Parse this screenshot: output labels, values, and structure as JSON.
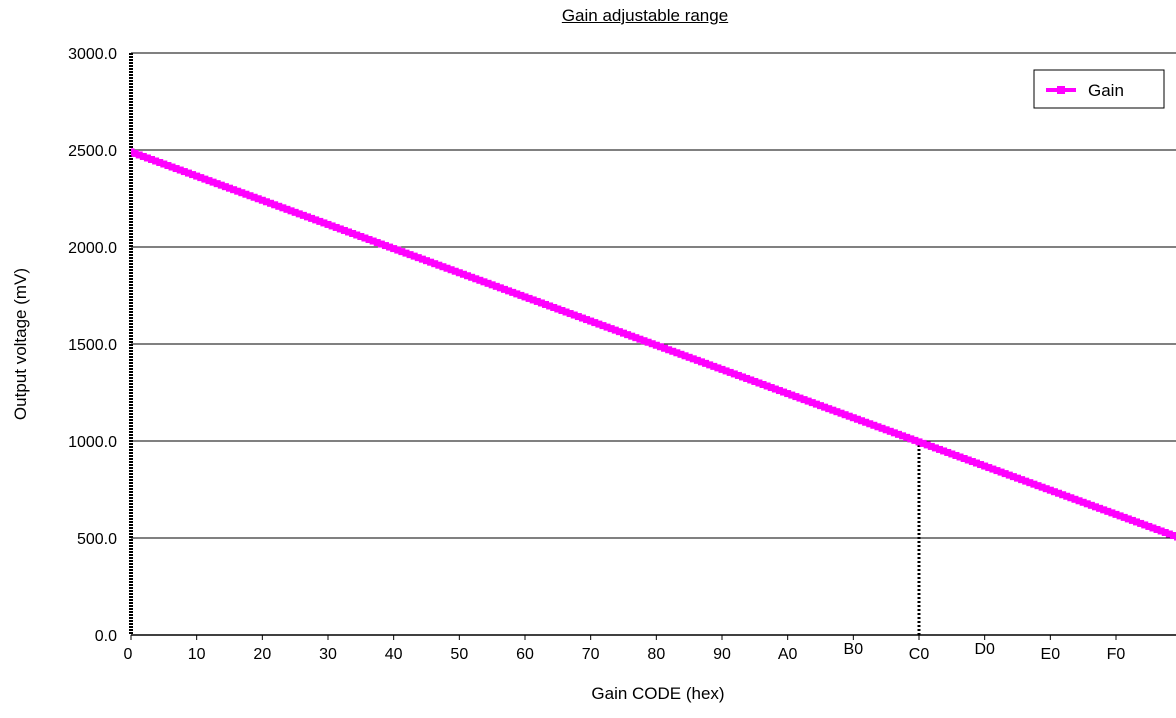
{
  "chart_data": {
    "type": "line",
    "title": "Gain adjustable range",
    "xlabel": "Gain CODE (hex)",
    "ylabel": "Output voltage (mV)",
    "x_tick_labels": [
      "0",
      "10",
      "20",
      "30",
      "40",
      "50",
      "60",
      "70",
      "80",
      "90",
      "A0",
      "B0",
      "C0",
      "D0",
      "E0",
      "F0"
    ],
    "y_tick_labels": [
      "0.0",
      "500.0",
      "1000.0",
      "1500.0",
      "2000.0",
      "2500.0",
      "3000.0"
    ],
    "xlim": [
      0,
      255
    ],
    "ylim": [
      0,
      3000
    ],
    "y_ticks": [
      0,
      500,
      1000,
      1500,
      2000,
      2500,
      3000
    ],
    "grid": "horizontal",
    "legend_position": "top-right",
    "series": [
      {
        "name": "Gain",
        "color": "#ff00ff",
        "marker": "square",
        "x_start": 0,
        "x_end": 255,
        "x_step": 1,
        "y_start": 2490,
        "y_end": 505,
        "points": [
          [
            0,
            2490
          ],
          [
            64,
            1993
          ],
          [
            128,
            1497
          ],
          [
            192,
            1000
          ],
          [
            255,
            505
          ]
        ]
      }
    ],
    "annotations": [
      {
        "type": "vertical-dotted-line",
        "x": 192,
        "y_from": 0,
        "y_to": 1000,
        "label": ""
      }
    ]
  }
}
